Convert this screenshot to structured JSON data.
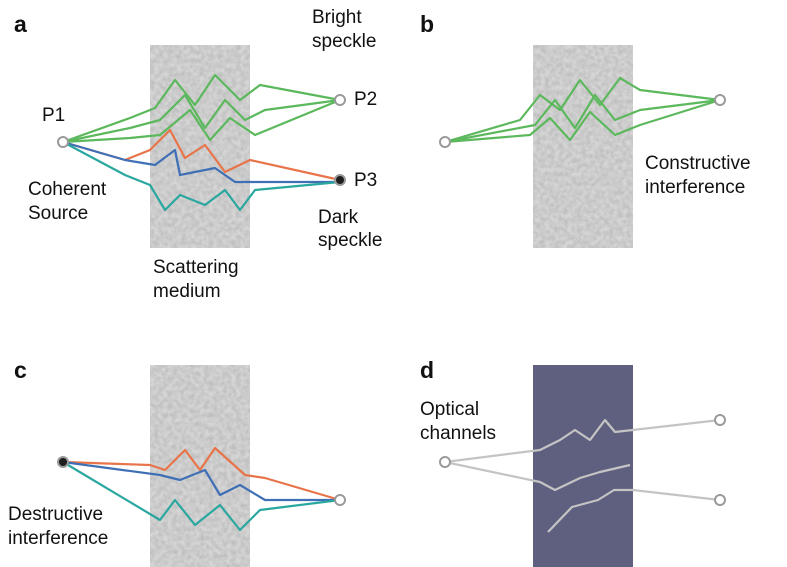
{
  "panels": [
    {
      "label": "a",
      "texts": [
        [
          "P1"
        ],
        [
          "Bright",
          "speckle"
        ],
        [
          "P2"
        ],
        [
          "P3"
        ],
        [
          "Coherent",
          "Source"
        ],
        [
          "Dark",
          "speckle"
        ],
        [
          "Scattering",
          "medium"
        ]
      ]
    },
    {
      "label": "b",
      "texts": [
        [
          "Constructive",
          "interference"
        ]
      ]
    },
    {
      "label": "c",
      "texts": [
        [
          "Destructive",
          "interference"
        ]
      ]
    },
    {
      "label": "d",
      "texts": [
        [
          "Optical",
          "channels"
        ]
      ]
    }
  ]
}
